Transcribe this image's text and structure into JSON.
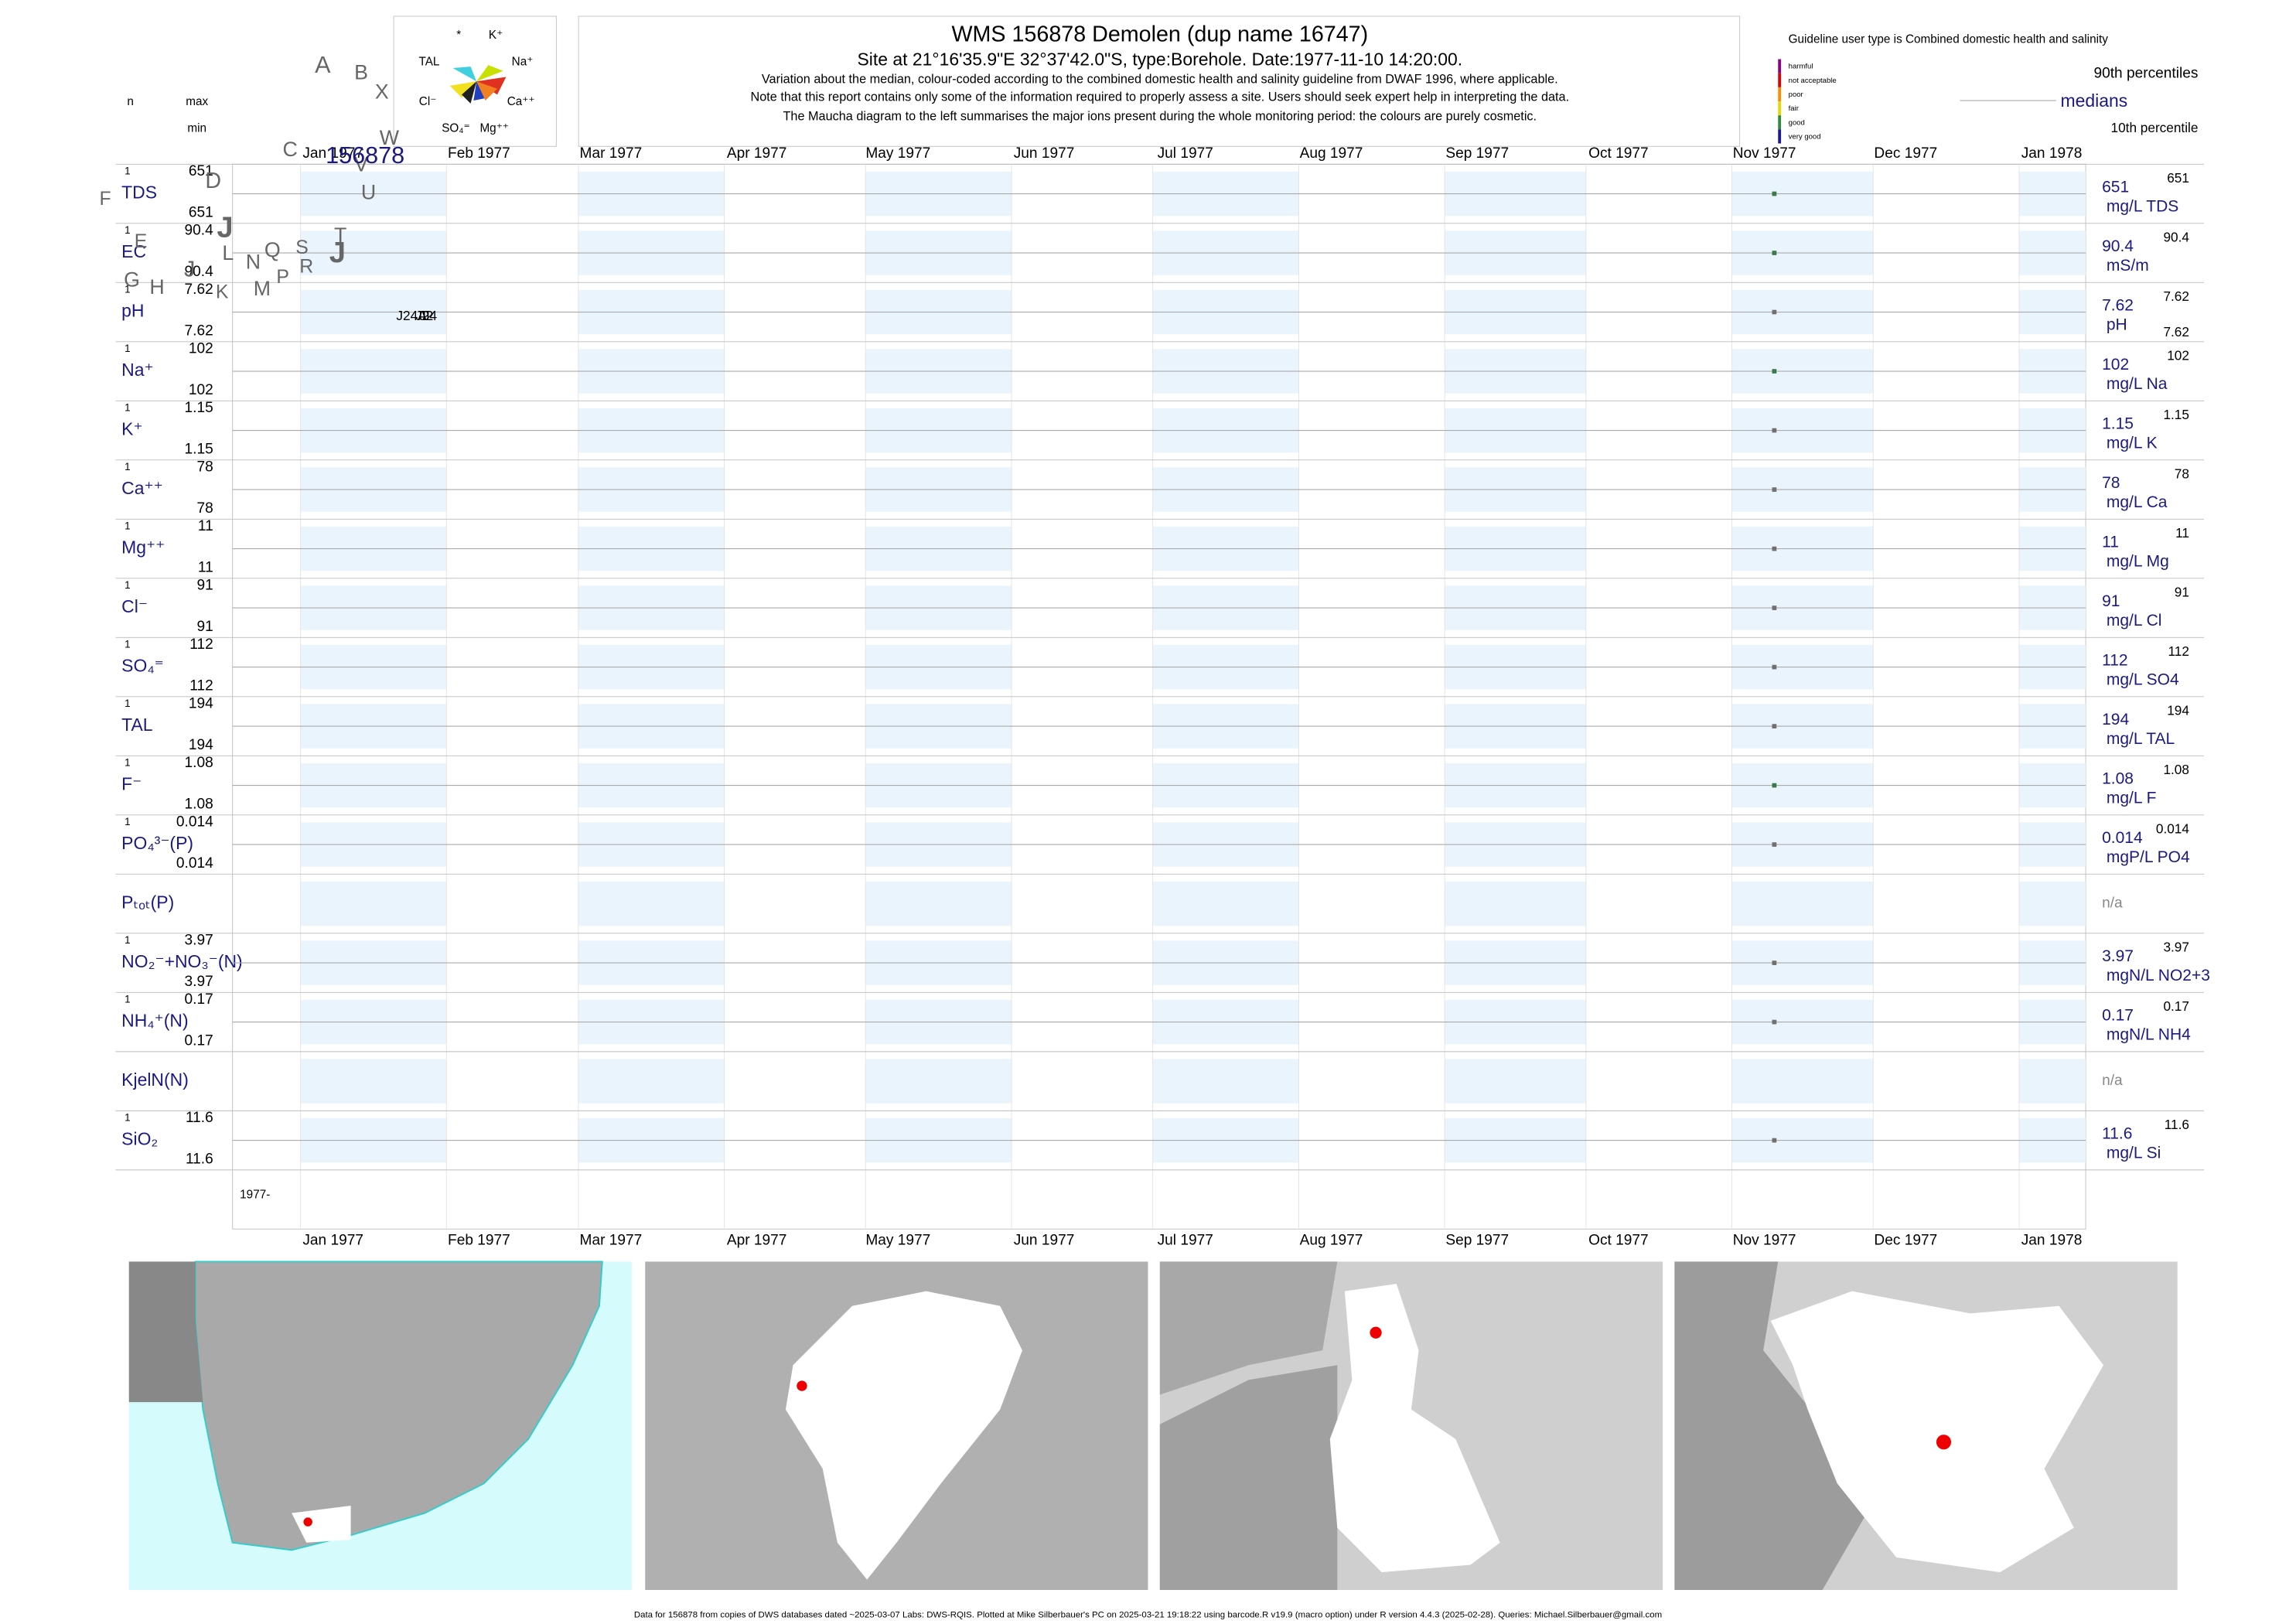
{
  "header": {
    "title": "WMS 156878  Demolen (dup name 16747)",
    "site": "Site at 21°16'35.9\"E 32°37'42.0\"S, type:Borehole. Date:1977-11-10 14:20:00.",
    "notes": [
      "Variation about the median,  colour-coded according to the combined domestic health and salinity guideline from DWAF 1996, where applicable.",
      "Note that this report contains only some of the information required to properly assess a site. Users should seek expert help in interpreting the data.",
      "The Maucha diagram to the left summarises the major ions present during the whole monitoring period: the colours are purely cosmetic."
    ]
  },
  "maucha": {
    "labels": [
      "*",
      "K⁺",
      "TAL",
      "Na⁺",
      "Cl⁻",
      "Ca⁺⁺",
      "SO₄⁼",
      "Mg⁺⁺"
    ]
  },
  "legend": {
    "guideline": "Guideline user type is Combined domestic health and salinity",
    "classes": [
      {
        "name": "harmful",
        "color": "#8b008b"
      },
      {
        "name": "not acceptable",
        "color": "#e00000"
      },
      {
        "name": "poor",
        "color": "#ff8c00"
      },
      {
        "name": "fair",
        "color": "#e8d800"
      },
      {
        "name": "good",
        "color": "#2e8b3a"
      },
      {
        "name": "very good",
        "color": "#1a1aa0"
      }
    ],
    "upper": "90th percentiles",
    "middle": "medians",
    "lower": "10th percentile"
  },
  "axis": {
    "n_label": "n",
    "max_label": "max",
    "min_label": "min",
    "months": [
      "Jan 1977",
      "Feb 1977",
      "Mar 1977",
      "Apr 1977",
      "May 1977",
      "Jun 1977",
      "Jul 1977",
      "Aug 1977",
      "Sep 1977",
      "Oct 1977",
      "Nov 1977",
      "Dec 1977",
      "Jan 1978"
    ],
    "start_label": "1977-"
  },
  "sample_date": "1977-11-10",
  "panels": [
    {
      "label": "TDS",
      "n": 1,
      "max": 651,
      "min": 651,
      "median": 651,
      "unit": "mg/L TDS",
      "color": "#3a7a4a"
    },
    {
      "label": "EC",
      "n": 1,
      "max": 90.4,
      "min": 90.4,
      "median": 90.4,
      "unit": "mS/m",
      "color": "#3a7a4a"
    },
    {
      "label": "pH",
      "n": 1,
      "max": 7.62,
      "min": 7.62,
      "median": 7.62,
      "unit": "pH",
      "color": "#707070",
      "right_min": true
    },
    {
      "label": "Na⁺",
      "n": 1,
      "max": 102,
      "min": 102,
      "median": 102,
      "unit": "mg/L Na",
      "color": "#3a7a4a"
    },
    {
      "label": "K⁺",
      "n": 1,
      "max": 1.15,
      "min": 1.15,
      "median": 1.15,
      "unit": "mg/L K",
      "color": "#707070"
    },
    {
      "label": "Ca⁺⁺",
      "n": 1,
      "max": 78,
      "min": 78,
      "median": 78,
      "unit": "mg/L Ca",
      "color": "#707070"
    },
    {
      "label": "Mg⁺⁺",
      "n": 1,
      "max": 11,
      "min": 11,
      "median": 11,
      "unit": "mg/L Mg",
      "color": "#707070"
    },
    {
      "label": "Cl⁻",
      "n": 1,
      "max": 91,
      "min": 91,
      "median": 91,
      "unit": "mg/L Cl",
      "color": "#707070"
    },
    {
      "label": "SO₄⁼",
      "n": 1,
      "max": 112,
      "min": 112,
      "median": 112,
      "unit": "mg/L SO4",
      "color": "#707070"
    },
    {
      "label": "TAL",
      "n": 1,
      "max": 194,
      "min": 194,
      "median": 194,
      "unit": "mg/L TAL",
      "color": "#707070"
    },
    {
      "label": "F⁻",
      "n": 1,
      "max": 1.08,
      "min": 1.08,
      "median": 1.08,
      "unit": "mg/L F",
      "color": "#3a7a4a"
    },
    {
      "label": "PO₄³⁻(P)",
      "n": 1,
      "max": 0.014,
      "min": 0.014,
      "median": 0.014,
      "unit": "mgP/L PO4",
      "color": "#707070"
    },
    {
      "label": "Pₜₒₜ(P)",
      "na": "n/a"
    },
    {
      "label": "NO₂⁻+NO₃⁻(N)",
      "n": 1,
      "max": 3.97,
      "min": 3.97,
      "median": 3.97,
      "unit": "mgN/L NO2+3",
      "color": "#707070"
    },
    {
      "label": "NH₄⁺(N)",
      "n": 1,
      "max": 0.17,
      "min": 0.17,
      "median": 0.17,
      "unit": "mgN/L NH4",
      "color": "#707070"
    },
    {
      "label": "KjelN(N)",
      "na": "n/a"
    },
    {
      "label": "SiO₂",
      "n": 1,
      "max": 11.6,
      "min": 11.6,
      "median": 11.6,
      "unit": "mg/L Si",
      "color": "#707070"
    }
  ],
  "maps": [
    {
      "label": "J",
      "letters": [
        "A",
        "B",
        "X",
        "C",
        "W",
        "D",
        "V",
        "U",
        "T",
        "F",
        "E",
        "S",
        "R",
        "Q",
        "L",
        "N",
        "P",
        "M",
        "K",
        "J",
        "G",
        "H"
      ]
    },
    {
      "label": "J2",
      "letters": [
        "J"
      ]
    },
    {
      "label": "J24",
      "letters": [
        "J"
      ]
    },
    {
      "label": "J24A",
      "letters": [
        "156878"
      ]
    }
  ],
  "footer": "Data for 156878 from copies of DWS databases dated ~2025-03-07 Labs: DWS-RQIS. Plotted at Mike Silberbauer's PC on 2025-03-21 19:18:22 using barcode.R v19.9 (macro option) under R version 4.4.3 (2025-02-28). Queries: Michael.Silberbauer@gmail.com"
}
